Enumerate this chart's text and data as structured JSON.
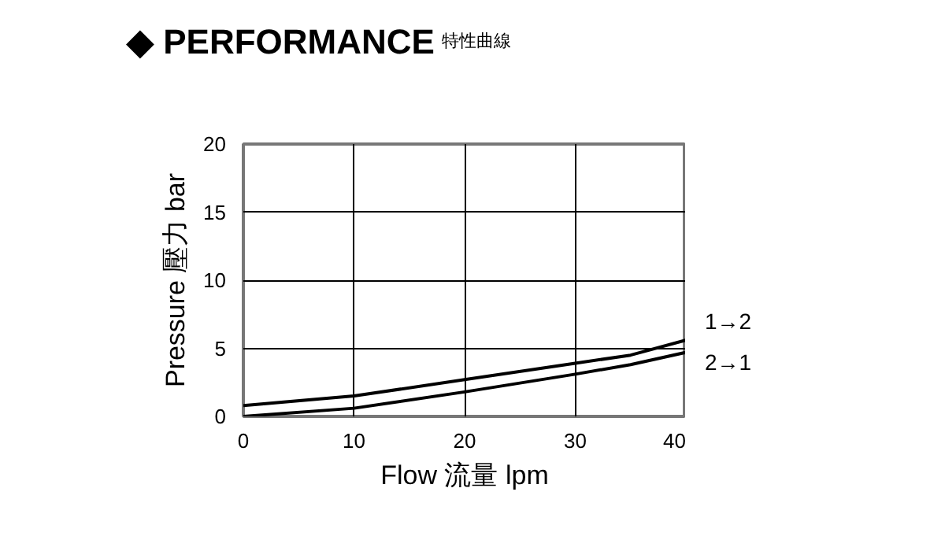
{
  "chart_data": {
    "type": "line",
    "title": "◆ PERFORMANCE",
    "subtitle": "特性曲線",
    "xlabel": "Flow 流量 lpm",
    "ylabel": "Pressure 壓力 bar",
    "xlim": [
      0,
      40
    ],
    "ylim": [
      0,
      20
    ],
    "xticks": [
      0,
      10,
      20,
      30,
      40
    ],
    "yticks": [
      0,
      5,
      10,
      15,
      20
    ],
    "grid": true,
    "marker": "none",
    "line_style": "solid",
    "series": [
      {
        "name": "1→2",
        "color": "#000000",
        "x": [
          0,
          10,
          20,
          30,
          35,
          40
        ],
        "values": [
          0.8,
          1.5,
          2.7,
          3.9,
          4.5,
          5.6
        ]
      },
      {
        "name": "2→1",
        "color": "#000000",
        "x": [
          0,
          10,
          20,
          30,
          35,
          40
        ],
        "values": [
          0,
          0.6,
          1.8,
          3.1,
          3.8,
          4.7
        ]
      }
    ]
  }
}
